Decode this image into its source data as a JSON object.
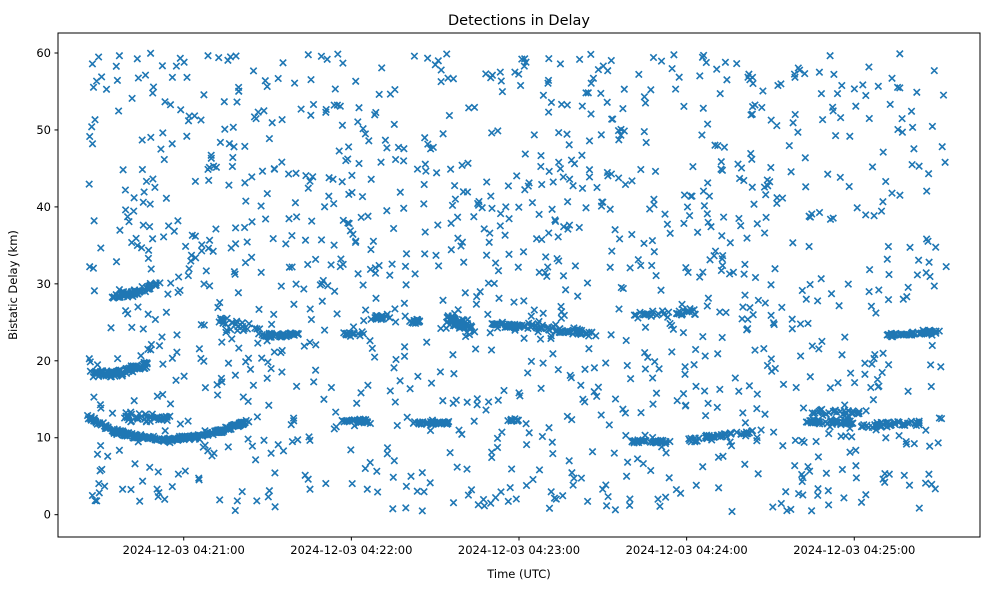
{
  "figure": {
    "title": "Detections in Delay",
    "xlabel": "Time (UTC)",
    "ylabel": "Bistatic Delay (km)"
  },
  "chart_data": {
    "type": "scatter",
    "title": "Detections in Delay",
    "xlabel": "Time (UTC)",
    "ylabel": "Bistatic Delay (km)",
    "marker": "x",
    "marker_color": "#1f77b4",
    "marker_size_px": 7,
    "grid": false,
    "legend": null,
    "x_axis": {
      "kind": "time",
      "base_time": "2024-12-03 04:20:00",
      "tick_labels": [
        "2024-12-03 04:21:00",
        "2024-12-03 04:22:00",
        "2024-12-03 04:23:00",
        "2024-12-03 04:24:00",
        "2024-12-03 04:25:00"
      ],
      "tick_seconds": [
        60,
        120,
        180,
        240,
        300
      ],
      "lim_seconds": [
        15,
        345
      ]
    },
    "y_axis": {
      "ticks": [
        0,
        10,
        20,
        30,
        40,
        50,
        60
      ],
      "lim": [
        -2.9,
        62.6
      ]
    },
    "points_model": {
      "note": "Roughly 2200 detections between 04:20:26 and 04:25:33 UTC; uniform clutter 0-60 km plus dense target tracks. Individual clutter points are not resolvable at screenshot scale, so they are regenerated deterministically from this model (seconds after base_time, delay in km).",
      "seed": 7,
      "background": {
        "count": 1250,
        "t_seconds_range": [
          26,
          333
        ],
        "delay_km_range": [
          0.35,
          60
        ]
      },
      "tracks": [
        {
          "pts": [
            [
              26,
              12.7
            ],
            [
              34,
              11.0
            ],
            [
              44,
              10.1
            ],
            [
              54,
              9.75
            ],
            [
              64,
              10.1
            ],
            [
              74,
              11.0
            ],
            [
              83,
              12.1
            ]
          ],
          "n": 260,
          "jitter": 0.22,
          "tj": 1.2
        },
        {
          "pts": [
            [
              39,
              12.8
            ],
            [
              55,
              12.4
            ]
          ],
          "n": 40,
          "jitter": 0.5,
          "tj": 1.5
        },
        {
          "pts": [
            [
              28,
              18.1
            ],
            [
              38,
              18.5
            ],
            [
              47,
              19.6
            ]
          ],
          "n": 80,
          "jitter": 0.35,
          "tj": 1.2
        },
        {
          "pts": [
            [
              35,
              28.3
            ],
            [
              44,
              29.0
            ],
            [
              51,
              30.1
            ]
          ],
          "n": 65,
          "jitter": 0.3,
          "tj": 1.2
        },
        {
          "pts": [
            [
              73,
              25.2
            ],
            [
              87,
              24.0
            ]
          ],
          "n": 28,
          "jitter": 0.55,
          "tj": 1.5
        },
        {
          "pts": [
            [
              88,
              23.3
            ],
            [
              101,
              23.4
            ]
          ],
          "n": 45,
          "jitter": 0.18,
          "tj": 1.2
        },
        {
          "pts": [
            [
              118,
              23.4
            ],
            [
              124,
              23.5
            ]
          ],
          "n": 16,
          "jitter": 0.2,
          "tj": 1.2
        },
        {
          "pts": [
            [
              127,
              25.6
            ],
            [
              134,
              25.8
            ]
          ],
          "n": 20,
          "jitter": 0.25,
          "tj": 1.2
        },
        {
          "pts": [
            [
              140,
              25.0
            ],
            [
              146,
              25.2
            ]
          ],
          "n": 16,
          "jitter": 0.25,
          "tj": 1.2
        },
        {
          "pts": [
            [
              153,
              25.6
            ],
            [
              163,
              24.1
            ]
          ],
          "n": 48,
          "jitter": 0.8,
          "tj": 1.5
        },
        {
          "pts": [
            [
              171,
              24.7
            ],
            [
              185,
              24.5
            ]
          ],
          "n": 40,
          "jitter": 0.28,
          "tj": 1.2
        },
        {
          "pts": [
            [
              187,
              24.3
            ],
            [
              207,
              23.5
            ]
          ],
          "n": 50,
          "jitter": 0.28,
          "tj": 1.2
        },
        {
          "pts": [
            [
              220,
              26.0
            ],
            [
              243,
              26.4
            ]
          ],
          "n": 32,
          "jitter": 0.35,
          "tj": 1.5
        },
        {
          "pts": [
            [
              311,
              23.3
            ],
            [
              331,
              23.7
            ]
          ],
          "n": 55,
          "jitter": 0.22,
          "tj": 1.2
        },
        {
          "pts": [
            [
              116,
              12.2
            ],
            [
              126,
              12.1
            ]
          ],
          "n": 26,
          "jitter": 0.2,
          "tj": 1.2
        },
        {
          "pts": [
            [
              143,
              11.9
            ],
            [
              155,
              11.9
            ]
          ],
          "n": 42,
          "jitter": 0.15,
          "tj": 1.2
        },
        {
          "pts": [
            [
              176,
              12.3
            ],
            [
              180,
              12.3
            ]
          ],
          "n": 12,
          "jitter": 0.2,
          "tj": 1.0
        },
        {
          "pts": [
            [
              221,
              9.5
            ],
            [
              234,
              9.4
            ]
          ],
          "n": 34,
          "jitter": 0.18,
          "tj": 1.2
        },
        {
          "pts": [
            [
              241,
              9.7
            ],
            [
              267,
              11.0
            ]
          ],
          "n": 45,
          "jitter": 0.25,
          "tj": 1.2
        },
        {
          "pts": [
            [
              283,
              12.1
            ],
            [
              300,
              12.0
            ]
          ],
          "n": 45,
          "jitter": 0.25,
          "tj": 1.2
        },
        {
          "pts": [
            [
              302,
              11.6
            ],
            [
              324,
              11.9
            ]
          ],
          "n": 50,
          "jitter": 0.25,
          "tj": 1.2
        },
        {
          "pts": [
            [
              285,
              13.4
            ],
            [
              305,
              13.15
            ]
          ],
          "n": 26,
          "jitter": 0.45,
          "tj": 1.5
        }
      ]
    }
  }
}
